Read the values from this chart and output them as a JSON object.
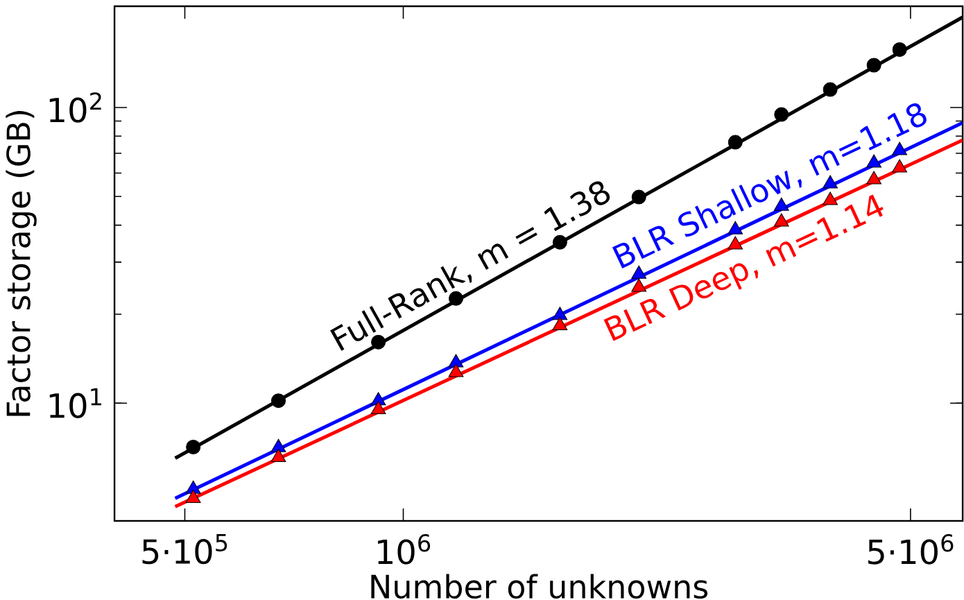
{
  "chart_data": {
    "type": "line",
    "xlabel": "Number of unknowns",
    "ylabel": "Factor storage (GB)",
    "log": "xy",
    "xlim": [
      400000,
      5900000
    ],
    "ylim": [
      4,
      220
    ],
    "xticks": [
      {
        "value": 500000,
        "label": "5·10$^{5}$"
      },
      {
        "value": 1000000,
        "label": "10$^{6}$"
      },
      {
        "value": 5000000,
        "label": "5·10$^{6}$"
      }
    ],
    "yticks": [
      {
        "value": 10,
        "label": "10$^{1}$"
      },
      {
        "value": 100,
        "label": "10$^{2}$"
      }
    ],
    "annotations": [
      {
        "text": "Full-Rank,  m = 1.38",
        "x": 1285000,
        "y": 24.9
      },
      {
        "text": "BLR Shallow,  m=1.18",
        "x": 3320000,
        "y": 45.3
      },
      {
        "text": "BLR Deep,  m=1.14",
        "x": 2860000,
        "y": 33.9
      }
    ],
    "series": [
      {
        "type": "scatter",
        "marker": "circle",
        "color": "#000000",
        "x": [
          513600,
          673000,
          924000,
          1182000,
          1644000,
          2112000,
          2868000,
          3320000,
          3876000,
          4452000,
          4830000
        ],
        "values": [
          7.11,
          10.2,
          16.1,
          22.6,
          35.0,
          49.8,
          76.3,
          94.7,
          115,
          139,
          157
        ]
      },
      {
        "type": "scatter",
        "marker": "triangle",
        "color": "#0000ff",
        "x": [
          513600,
          673000,
          924000,
          1182000,
          1644000,
          2112000,
          2868000,
          3320000,
          3876000,
          4452000,
          4830000
        ],
        "values": [
          5.12,
          7.08,
          10.2,
          13.7,
          19.8,
          27.3,
          38.6,
          46.4,
          55.2,
          64.9,
          71.5
        ]
      },
      {
        "type": "scatter",
        "marker": "triangle",
        "color": "#ff0000",
        "x": [
          513600,
          673000,
          924000,
          1182000,
          1644000,
          2112000,
          2868000,
          3320000,
          3876000,
          4452000,
          4830000
        ],
        "values": [
          4.77,
          6.56,
          9.52,
          12.7,
          18.3,
          24.7,
          34.3,
          41.0,
          48.5,
          57.0,
          62.5
        ]
      },
      {
        "color": "#000000",
        "x": [
          485000,
          5900000
        ],
        "values": [
          6.52,
          202
        ]
      },
      {
        "color": "#0000ff",
        "x": [
          485000,
          5900000
        ],
        "values": [
          4.77,
          88.8
        ]
      },
      {
        "color": "#ff0000",
        "x": [
          485000,
          5900000
        ],
        "values": [
          4.47,
          77.6
        ]
      }
    ]
  }
}
